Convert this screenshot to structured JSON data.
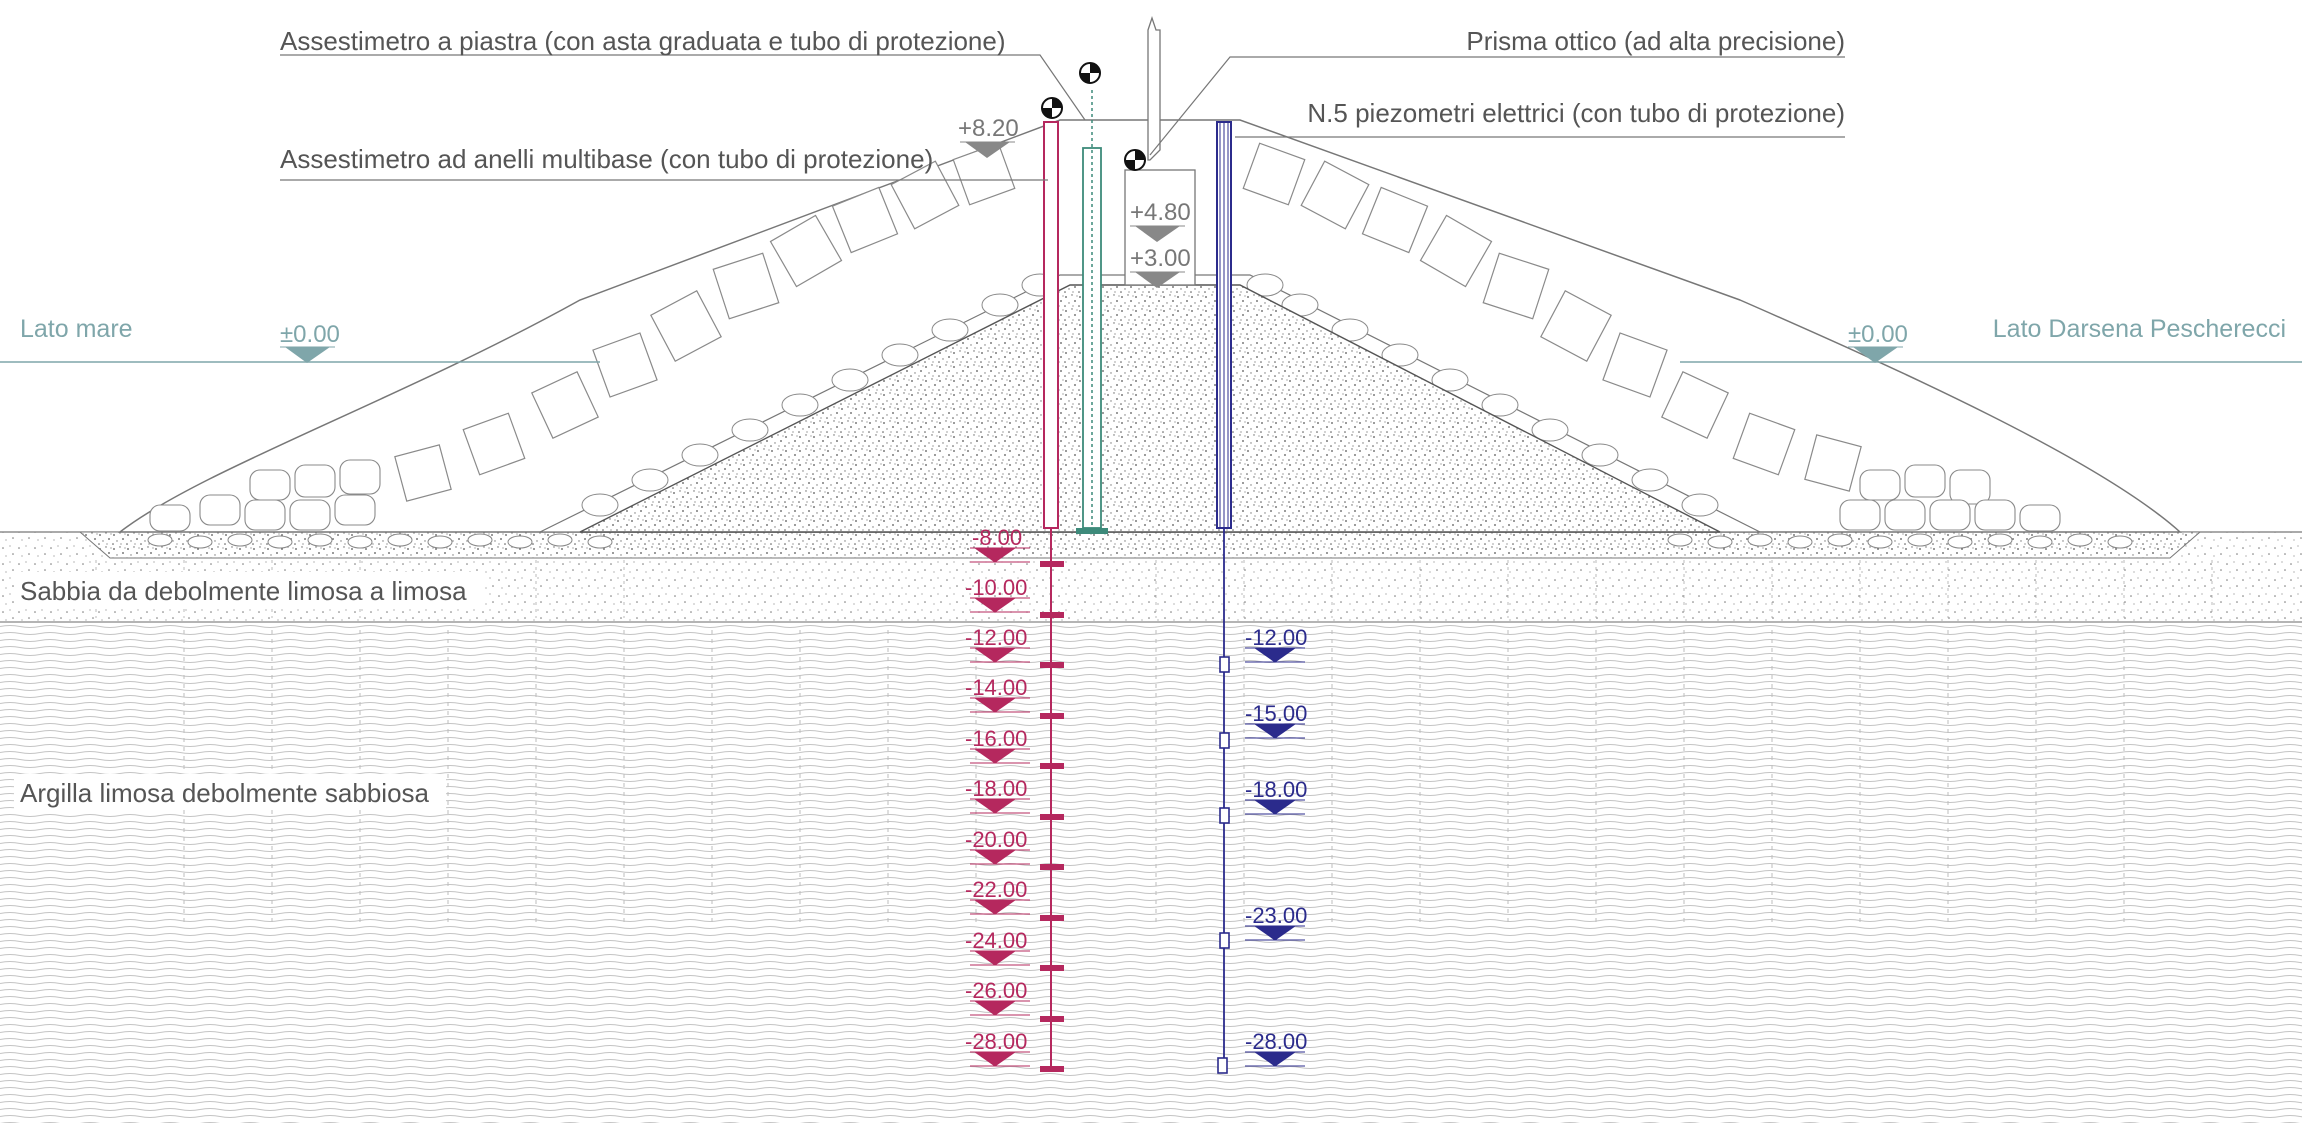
{
  "labels": {
    "plate_settlement": "Assestimetro a piastra (con asta graduata e tubo di protezione)",
    "ring_settlement": "Assestimetro ad anelli multibase (con tubo di protezione)",
    "optical_prism": "Prisma ottico (ad alta precisione)",
    "piezometers": "N.5 piezometri elettrici (con tubo di protezione)"
  },
  "sides": {
    "left": "Lato mare",
    "right": "Lato Darsena Pescherecci"
  },
  "soil_layers": {
    "sand": "Sabbia da debolmente limosa a limosa",
    "clay": "Argilla limosa debolmente sabbiosa"
  },
  "elevations": {
    "top_rod": "+8.20",
    "crest_wall": "+4.80",
    "crest": "+3.00",
    "sea_left": "±0.00",
    "sea_right": "±0.00"
  },
  "ring_depths": [
    "-8.00",
    "-10.00",
    "-12.00",
    "-14.00",
    "-16.00",
    "-18.00",
    "-20.00",
    "-22.00",
    "-24.00",
    "-26.00",
    "-28.00"
  ],
  "piezometer_depths": [
    "-12.00",
    "-15.00",
    "-18.00",
    "-23.00",
    "-28.00"
  ],
  "colors": {
    "ring_instrument": "#b5285e",
    "piezometer": "#2b2b8c",
    "plate_instrument": "#3d8a7a",
    "water": "#7fa6aa",
    "text": "#555555"
  }
}
